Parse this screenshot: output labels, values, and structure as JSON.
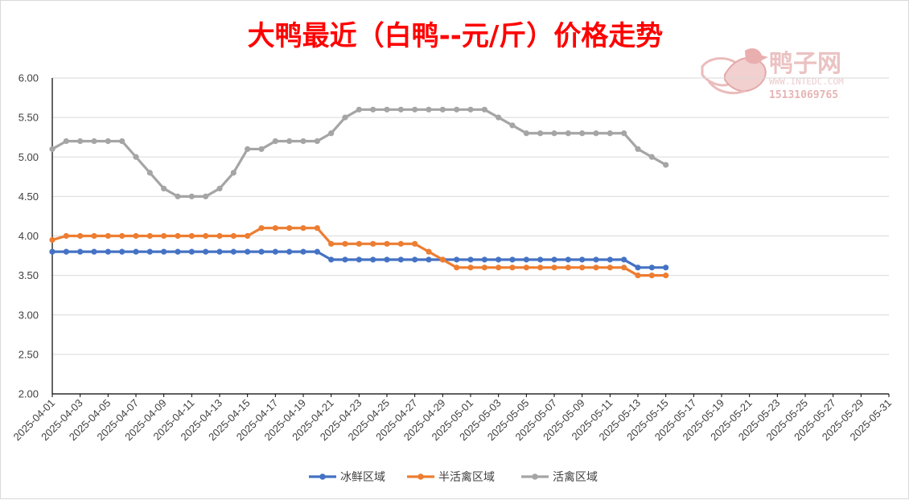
{
  "watermark": {
    "brand": "鸭子网",
    "url": "WWW.INTEDC.COM",
    "phone": "15131069765"
  },
  "chart_data": {
    "type": "line",
    "title": "大鸭最近（白鸭--元/斤）价格走势",
    "xlabel": "",
    "ylabel": "",
    "ylim": [
      2.0,
      6.0
    ],
    "ytick_labels": [
      "2.00",
      "2.50",
      "3.00",
      "3.50",
      "4.00",
      "4.50",
      "5.00",
      "5.50",
      "6.00"
    ],
    "yticks": [
      2.0,
      2.5,
      3.0,
      3.5,
      4.0,
      4.5,
      5.0,
      5.5,
      6.0
    ],
    "x_range": [
      "2025-04-01",
      "2025-05-31"
    ],
    "xtick_labels": [
      "2025-04-01",
      "2025-04-03",
      "2025-04-05",
      "2025-04-07",
      "2025-04-09",
      "2025-04-11",
      "2025-04-13",
      "2025-04-15",
      "2025-04-17",
      "2025-04-19",
      "2025-04-21",
      "2025-04-23",
      "2025-04-25",
      "2025-04-27",
      "2025-04-29",
      "2025-05-01",
      "2025-05-03",
      "2025-05-05",
      "2025-05-07",
      "2025-05-09",
      "2025-05-11",
      "2025-05-13",
      "2025-05-15",
      "2025-05-17",
      "2025-05-19",
      "2025-05-21",
      "2025-05-23",
      "2025-05-25",
      "2025-05-27",
      "2025-05-29",
      "2025-05-31"
    ],
    "x": [
      "2025-04-01",
      "2025-04-02",
      "2025-04-03",
      "2025-04-04",
      "2025-04-05",
      "2025-04-06",
      "2025-04-07",
      "2025-04-08",
      "2025-04-09",
      "2025-04-10",
      "2025-04-11",
      "2025-04-12",
      "2025-04-13",
      "2025-04-14",
      "2025-04-15",
      "2025-04-16",
      "2025-04-17",
      "2025-04-18",
      "2025-04-19",
      "2025-04-20",
      "2025-04-21",
      "2025-04-22",
      "2025-04-23",
      "2025-04-24",
      "2025-04-25",
      "2025-04-26",
      "2025-04-27",
      "2025-04-28",
      "2025-04-29",
      "2025-04-30",
      "2025-05-01",
      "2025-05-02",
      "2025-05-03",
      "2025-05-04",
      "2025-05-05",
      "2025-05-06",
      "2025-05-07",
      "2025-05-08",
      "2025-05-09",
      "2025-05-10",
      "2025-05-11",
      "2025-05-12",
      "2025-05-13",
      "2025-05-14",
      "2025-05-15"
    ],
    "series": [
      {
        "name": "冰鲜区域",
        "color": "#4472c4",
        "values": [
          3.8,
          3.8,
          3.8,
          3.8,
          3.8,
          3.8,
          3.8,
          3.8,
          3.8,
          3.8,
          3.8,
          3.8,
          3.8,
          3.8,
          3.8,
          3.8,
          3.8,
          3.8,
          3.8,
          3.8,
          3.7,
          3.7,
          3.7,
          3.7,
          3.7,
          3.7,
          3.7,
          3.7,
          3.7,
          3.7,
          3.7,
          3.7,
          3.7,
          3.7,
          3.7,
          3.7,
          3.7,
          3.7,
          3.7,
          3.7,
          3.7,
          3.7,
          3.6,
          3.6,
          3.6
        ]
      },
      {
        "name": "半活禽区域",
        "color": "#ed7d31",
        "values": [
          3.95,
          4.0,
          4.0,
          4.0,
          4.0,
          4.0,
          4.0,
          4.0,
          4.0,
          4.0,
          4.0,
          4.0,
          4.0,
          4.0,
          4.0,
          4.1,
          4.1,
          4.1,
          4.1,
          4.1,
          3.9,
          3.9,
          3.9,
          3.9,
          3.9,
          3.9,
          3.9,
          3.8,
          3.7,
          3.6,
          3.6,
          3.6,
          3.6,
          3.6,
          3.6,
          3.6,
          3.6,
          3.6,
          3.6,
          3.6,
          3.6,
          3.6,
          3.5,
          3.5,
          3.5
        ]
      },
      {
        "name": "活禽区域",
        "color": "#a5a5a5",
        "values": [
          5.1,
          5.2,
          5.2,
          5.2,
          5.2,
          5.2,
          5.0,
          4.8,
          4.6,
          4.5,
          4.5,
          4.5,
          4.6,
          4.8,
          5.1,
          5.1,
          5.2,
          5.2,
          5.2,
          5.2,
          5.3,
          5.5,
          5.6,
          5.6,
          5.6,
          5.6,
          5.6,
          5.6,
          5.6,
          5.6,
          5.6,
          5.6,
          5.5,
          5.4,
          5.3,
          5.3,
          5.3,
          5.3,
          5.3,
          5.3,
          5.3,
          5.3,
          5.1,
          5.0,
          4.9
        ]
      }
    ],
    "grid": true,
    "legend": "bottom"
  }
}
